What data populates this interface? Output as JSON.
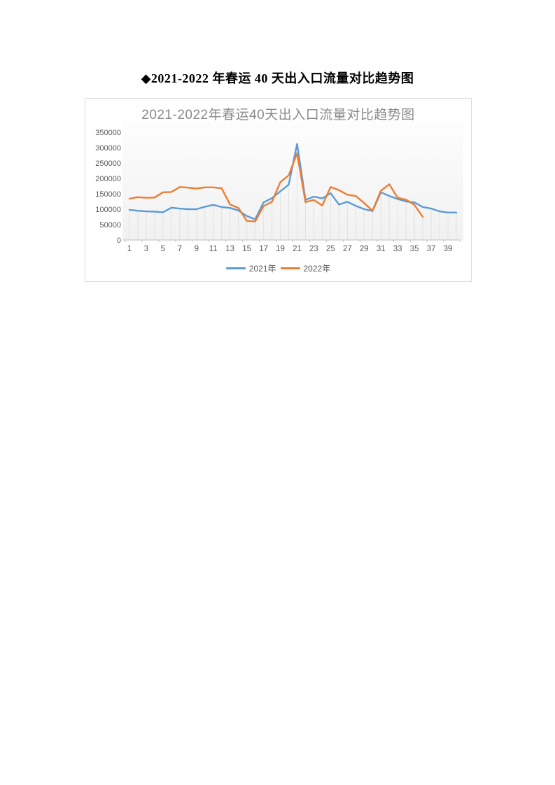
{
  "page": {
    "heading": "◆2021-2022 年春运 40 天出入口流量对比趋势图"
  },
  "chart_data": {
    "type": "line",
    "title": "2021-2022年春运40天出入口流量对比趋势图",
    "xlabel": "",
    "ylabel": "",
    "ylim": [
      0,
      350000
    ],
    "y_ticks": [
      0,
      50000,
      100000,
      150000,
      200000,
      250000,
      300000,
      350000
    ],
    "x": [
      1,
      2,
      3,
      4,
      5,
      6,
      7,
      8,
      9,
      10,
      11,
      12,
      13,
      14,
      15,
      16,
      17,
      18,
      19,
      20,
      21,
      22,
      23,
      24,
      25,
      26,
      27,
      28,
      29,
      30,
      31,
      32,
      33,
      34,
      35,
      36,
      37,
      38,
      39,
      40
    ],
    "x_tick_labels": [
      "1",
      "3",
      "5",
      "7",
      "9",
      "11",
      "13",
      "15",
      "17",
      "19",
      "21",
      "23",
      "25",
      "27",
      "29",
      "31",
      "33",
      "35",
      "37",
      "39"
    ],
    "grid": "drop-lines",
    "legend_position": "bottom",
    "series": [
      {
        "name": "2021年",
        "color": "#5B9BD5",
        "values": [
          98000,
          95000,
          93000,
          92000,
          90000,
          105000,
          102000,
          100000,
          100000,
          108000,
          114000,
          107000,
          104000,
          96000,
          78000,
          67000,
          122000,
          136000,
          158000,
          180000,
          312000,
          130000,
          141000,
          135000,
          152000,
          115000,
          124000,
          111000,
          100000,
          94000,
          155000,
          143000,
          133000,
          125000,
          122000,
          107000,
          102000,
          93000,
          89000,
          89000
        ]
      },
      {
        "name": "2022年",
        "color": "#ED7D31",
        "values": [
          134000,
          139000,
          137000,
          138000,
          155000,
          156000,
          172000,
          170000,
          167000,
          171000,
          171000,
          168000,
          115000,
          104000,
          62000,
          60000,
          110000,
          124000,
          188000,
          210000,
          282000,
          123000,
          130000,
          112000,
          172000,
          162000,
          147000,
          143000,
          120000,
          95000,
          160000,
          181000,
          137000,
          131000,
          114000,
          75000
        ]
      }
    ],
    "colors": {
      "title_text": "#8a8a8a",
      "axis_text": "#595959",
      "axis_line": "#bfbfbf",
      "drop_line": "#e2e2e2",
      "chart_border": "#d9d9d9"
    }
  }
}
